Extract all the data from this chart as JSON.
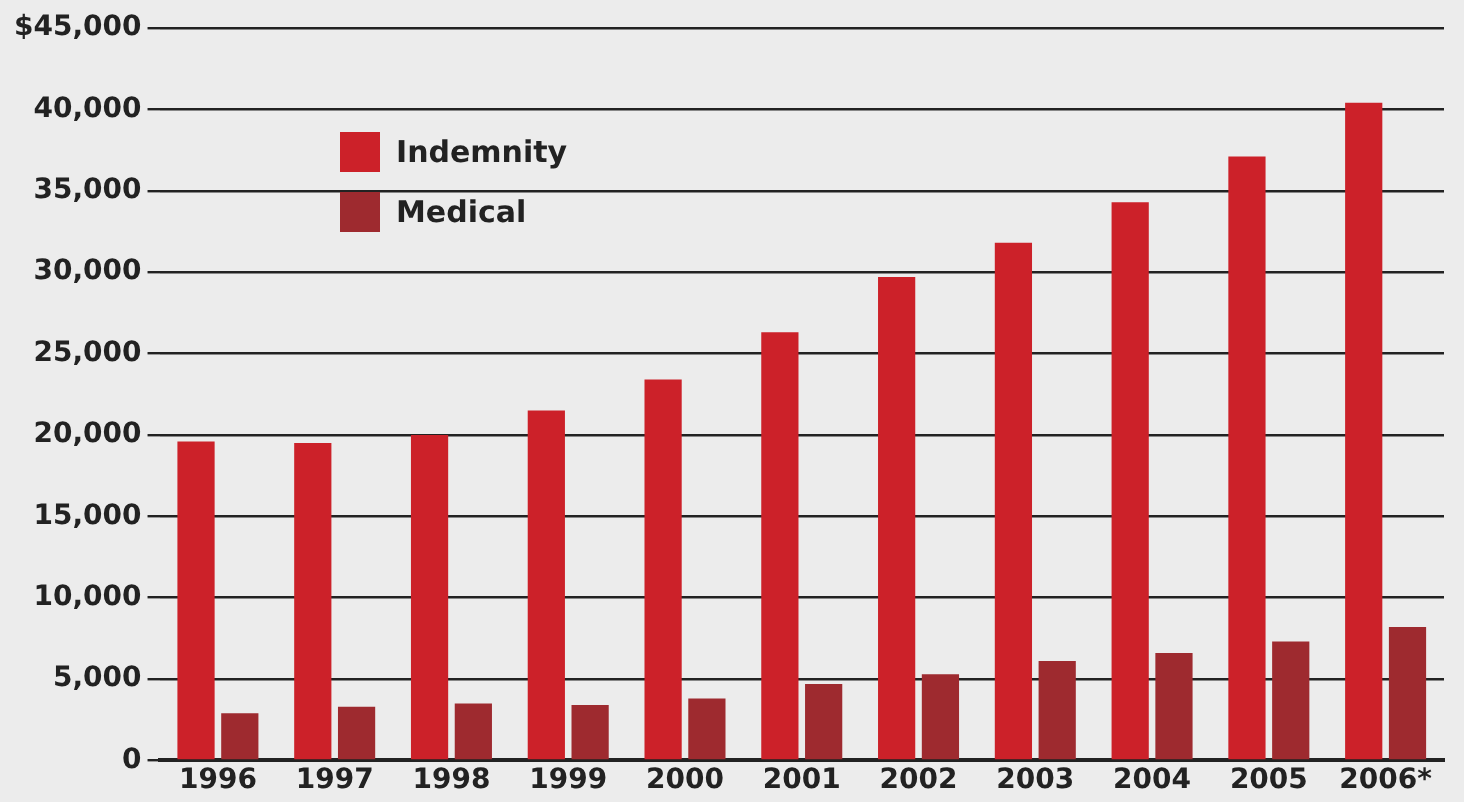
{
  "chart_data": {
    "type": "bar",
    "categories": [
      "1996",
      "1997",
      "1998",
      "1999",
      "2000",
      "2001",
      "2002",
      "2003",
      "2004",
      "2005",
      "2006*"
    ],
    "series": [
      {
        "name": "Indemnity",
        "color": "#cc2129",
        "values": [
          19600,
          19500,
          20000,
          21500,
          23400,
          26300,
          29700,
          31800,
          34300,
          37100,
          40400
        ]
      },
      {
        "name": "Medical",
        "color": "#9e2a2f",
        "values": [
          2900,
          3300,
          3500,
          3400,
          3800,
          4700,
          5300,
          6100,
          6600,
          7300,
          8200
        ]
      }
    ],
    "ylim": [
      0,
      45000
    ],
    "yticks": [
      0,
      {
        "value": 5000,
        "label": "5,000"
      },
      {
        "value": 10000,
        "label": "10,000"
      },
      {
        "value": 15000,
        "label": "15,000"
      },
      {
        "value": 20000,
        "label": "20,000"
      },
      {
        "value": 25000,
        "label": "25,000"
      },
      {
        "value": 30000,
        "label": "30,000"
      },
      {
        "value": 35000,
        "label": "35,000"
      },
      {
        "value": 40000,
        "label": "40,000"
      },
      {
        "value": 45000,
        "label": "$45,000"
      }
    ],
    "grid": "y",
    "legend": "top left"
  }
}
